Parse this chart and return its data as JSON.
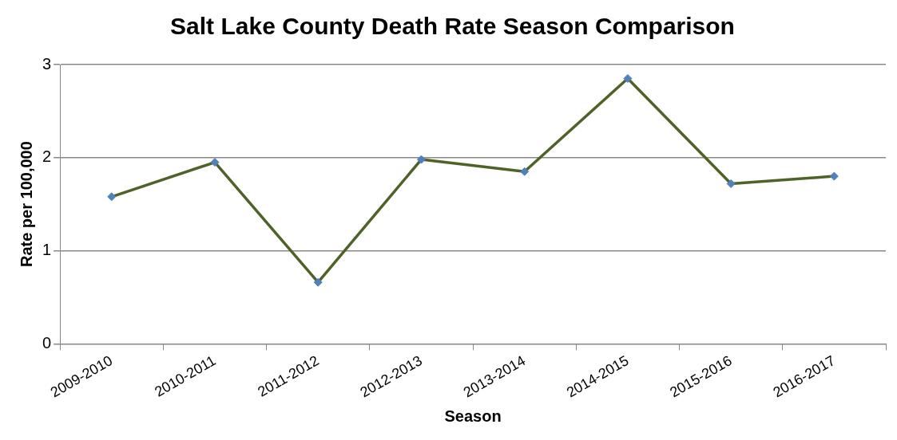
{
  "chart_data": {
    "type": "line",
    "title": "Salt Lake County Death Rate Season Comparison",
    "xlabel": "Season",
    "ylabel": "Rate per 100,000",
    "categories": [
      "2009-2010",
      "2010-2011",
      "2011-2012",
      "2012-2013",
      "2013-2014",
      "2014-2015",
      "2015-2016",
      "2016-2017"
    ],
    "series": [
      {
        "color": "#4f6228",
        "values": [
          1.58,
          1.95,
          0.66,
          1.98,
          1.85,
          2.85,
          1.72,
          1.8
        ]
      }
    ],
    "ylim": [
      0,
      3
    ],
    "yticks": [
      0,
      1,
      2,
      3
    ],
    "grid": "y",
    "legend": false,
    "marker": "diamond",
    "line_style": "solid"
  }
}
